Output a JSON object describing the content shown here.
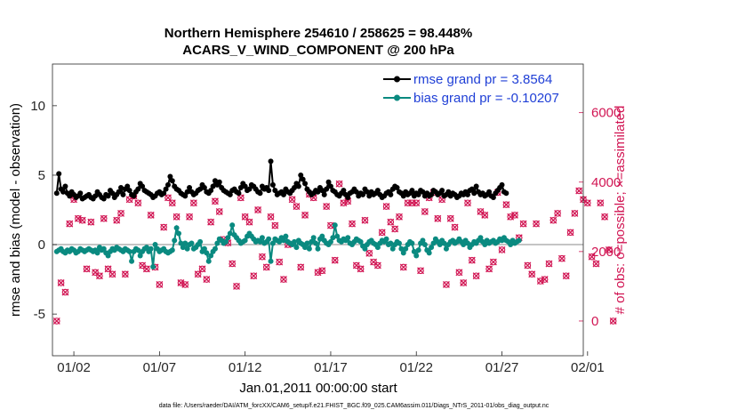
{
  "chart_data": {
    "type": "line",
    "title": "Northern Hemisphere 254610 / 258625 = 98.448%",
    "subtitle": "ACARS_V_WIND_COMPONENT @ 200 hPa",
    "xlabel": "Jan.01,2011 00:00:00 start",
    "ylabel_left": "rmse and bias (model - observation)",
    "ylabel_right": "# of obs: o=possible; ×=assimilated",
    "footnote": "data file: /Users/raeder/DAI/ATM_forcXX/CAM6_setup/f.e21.FHIST_BGC.f09_025.CAM6assim.011/Diags_NTrS_2011-01/obs_diag_output.nc",
    "x_ticks": [
      "01/02",
      "01/07",
      "01/12",
      "01/17",
      "01/22",
      "01/27",
      "02/01"
    ],
    "xlim": [
      0.75,
      31.75
    ],
    "ylim_left": [
      -8,
      13
    ],
    "ylim_right": [
      -1000,
      7400
    ],
    "y_ticks_left": [
      -5,
      0,
      5,
      10
    ],
    "y_ticks_right": [
      0,
      2000,
      4000,
      6000
    ],
    "colors": {
      "rmse": "#000000",
      "bias": "#0a8a80",
      "obs": "#d11553",
      "zero": "#b0b0b0",
      "legend_text": "#1f3fd6",
      "right_axis": "#d11553"
    },
    "legend": [
      {
        "name": "rmse grand pr = 3.8564",
        "key": "rmse"
      },
      {
        "name": "bias grand pr = -0.10207",
        "key": "bias"
      }
    ],
    "series": [
      {
        "name": "rmse",
        "x_start": 1.0,
        "x_step": 0.125,
        "values": [
          3.7,
          5.1,
          4.0,
          3.8,
          4.2,
          3.7,
          3.5,
          3.8,
          3.6,
          3.4,
          3.5,
          3.7,
          3.3,
          3.4,
          3.5,
          3.6,
          3.4,
          3.3,
          3.5,
          3.8,
          3.6,
          3.4,
          3.3,
          3.6,
          3.5,
          3.9,
          3.7,
          3.4,
          3.6,
          3.8,
          4.1,
          3.6,
          4.0,
          4.2,
          3.9,
          3.6,
          3.5,
          3.8,
          4.0,
          4.4,
          4.2,
          3.9,
          3.8,
          3.7,
          3.6,
          3.4,
          3.5,
          3.7,
          3.8,
          3.6,
          3.7,
          4.0,
          4.3,
          4.9,
          4.6,
          4.2,
          4.0,
          3.9,
          3.7,
          3.6,
          3.5,
          3.8,
          4.1,
          3.8,
          3.6,
          3.7,
          3.9,
          4.0,
          4.3,
          4.1,
          3.8,
          3.7,
          3.9,
          4.2,
          4.6,
          4.3,
          4.5,
          4.1,
          3.9,
          3.8,
          3.7,
          3.6,
          3.9,
          4.0,
          3.8,
          3.7,
          4.1,
          4.4,
          4.2,
          3.9,
          4.0,
          4.3,
          4.2,
          4.0,
          3.8,
          3.7,
          4.2,
          4.0,
          4.1,
          3.9,
          6.0,
          4.3,
          3.9,
          3.6,
          3.7,
          3.8,
          3.6,
          4.0,
          3.8,
          3.7,
          3.9,
          4.1,
          4.4,
          4.2,
          5.0,
          4.7,
          4.4,
          4.0,
          3.8,
          3.6,
          3.7,
          3.9,
          3.8,
          4.1,
          3.9,
          3.6,
          4.0,
          4.5,
          4.2,
          3.9,
          3.8,
          3.6,
          3.5,
          3.7,
          3.9,
          3.6,
          3.4,
          3.7,
          3.8,
          4.0,
          3.8,
          3.5,
          3.7,
          3.6,
          4.0,
          3.8,
          3.5,
          3.8,
          3.6,
          3.7,
          3.9,
          3.6,
          3.4,
          3.5,
          3.7,
          3.8,
          3.6,
          4.0,
          4.2,
          4.1,
          3.8,
          3.7,
          3.5,
          3.8,
          3.6,
          3.7,
          3.9,
          3.5,
          3.7,
          3.6,
          3.9,
          3.8,
          3.5,
          3.7,
          3.5,
          3.6,
          3.9,
          3.8,
          3.6,
          3.7,
          3.9,
          3.5,
          3.6,
          3.8,
          3.5,
          3.7,
          3.6,
          3.4,
          3.5,
          3.7,
          3.6,
          3.8,
          3.6,
          3.9,
          4.0,
          3.7,
          4.2,
          3.8,
          3.6,
          3.7,
          3.5,
          3.6,
          3.8,
          3.5,
          3.4,
          3.7,
          3.9,
          4.1,
          4.3,
          3.8,
          3.7
        ]
      },
      {
        "name": "bias",
        "x_start": 1.0,
        "x_step": 0.125,
        "values": [
          -0.5,
          -0.4,
          -0.3,
          -0.5,
          -0.6,
          -0.4,
          -0.5,
          -0.3,
          -0.4,
          -0.6,
          -0.5,
          -0.3,
          -0.4,
          -0.5,
          -0.4,
          -0.3,
          -0.4,
          -0.5,
          -0.4,
          -0.6,
          -0.2,
          -0.4,
          -0.3,
          -0.6,
          -0.8,
          -0.5,
          -0.3,
          -0.4,
          -0.2,
          -0.3,
          -0.4,
          -0.5,
          -0.3,
          -0.4,
          -0.5,
          -1.2,
          -0.5,
          -0.3,
          -0.4,
          -0.8,
          -0.5,
          -0.3,
          -0.2,
          -0.5,
          -0.3,
          -1.6,
          0.0,
          -0.3,
          -0.5,
          -0.4,
          -0.3,
          -0.5,
          -0.6,
          -0.5,
          -0.4,
          0.3,
          1.2,
          0.8,
          0.1,
          -0.2,
          0.1,
          -0.3,
          0.0,
          0.1,
          -0.3,
          -0.2,
          0.0,
          0.2,
          -0.5,
          -0.3,
          -0.6,
          -1.2,
          -0.8,
          -0.5,
          -0.3,
          0.1,
          0.4,
          0.3,
          0.1,
          0.2,
          0.5,
          0.8,
          1.4,
          0.7,
          0.5,
          0.3,
          0.1,
          0.2,
          0.3,
          0.6,
          0.8,
          0.6,
          0.4,
          0.2,
          0.3,
          0.2,
          0.5,
          0.1,
          0.2,
          0.4,
          -1.2,
          0.1,
          0.4,
          0.3,
          0.2,
          0.5,
          0.3,
          0.6,
          0.2,
          0.1,
          0.0,
          0.2,
          -0.2,
          0.3,
          0.1,
          0.0,
          -0.2,
          0.1,
          -0.3,
          0.2,
          0.5,
          0.1,
          -0.3,
          0.4,
          0.6,
          0.3,
          0.1,
          0.0,
          0.2,
          0.5,
          1.4,
          0.6,
          0.3,
          0.2,
          0.4,
          0.3,
          0.5,
          0.1,
          0.0,
          0.2,
          0.4,
          0.3,
          0.2,
          -0.1,
          -0.3,
          0.0,
          0.2,
          0.3,
          0.1,
          0.0,
          -0.2,
          0.1,
          0.3,
          0.2,
          0.4,
          0.0,
          0.1,
          -0.3,
          0.0,
          0.2,
          0.1,
          -0.3,
          -0.6,
          -0.3,
          0.0,
          0.2,
          0.1,
          -0.5,
          -0.8,
          -0.4,
          0.1,
          0.3,
          0.0,
          -0.4,
          -0.6,
          -0.2,
          0.1,
          0.4,
          0.2,
          0.0,
          0.3,
          0.1,
          -0.3,
          0.0,
          0.2,
          0.3,
          0.1,
          0.2,
          0.4,
          0.2,
          0.0,
          0.3,
          0.1,
          -0.2,
          0.0,
          0.2,
          0.1,
          0.3,
          0.5,
          0.2,
          0.0,
          0.3,
          0.1,
          0.2,
          0.3,
          0.1,
          0.2,
          0.4,
          0.3,
          0.5,
          0.3,
          0.2,
          0.0,
          0.3,
          0.1,
          0.2,
          0.3
        ]
      },
      {
        "name": "obs possible/assimilated",
        "axis": "right",
        "x_start": 1.0,
        "x_step": 0.25,
        "values": [
          0,
          1100,
          830,
          2800,
          3500,
          2950,
          2900,
          1500,
          2850,
          1400,
          1300,
          2950,
          1500,
          1350,
          2900,
          3100,
          1350,
          3500,
          3600,
          3400,
          1600,
          1500,
          3050,
          1550,
          1050,
          2700,
          3550,
          3400,
          3000,
          1100,
          1050,
          3000,
          3400,
          1350,
          1500,
          1200,
          2850,
          3450,
          3150,
          2350,
          2250,
          1650,
          1000,
          3550,
          3000,
          2850,
          1300,
          3200,
          1850,
          1550,
          3000,
          2750,
          1700,
          1200,
          2200,
          3500,
          3300,
          1550,
          3050,
          3650,
          3550,
          1400,
          1450,
          3300,
          2750,
          1750,
          3950,
          3400,
          3450,
          2800,
          1600,
          1500,
          2900,
          1950,
          1700,
          1600,
          2550,
          3300,
          2850,
          2650,
          3000,
          1550,
          3400,
          3400,
          3400,
          1450,
          3150,
          3550,
          3700,
          2950,
          3500,
          1050,
          2950,
          2700,
          1400,
          1100,
          3400,
          1750,
          1300,
          3150,
          3050,
          1500,
          1700,
          3700,
          2050,
          3350,
          3000,
          3050,
          2400,
          2800,
          1600,
          1350,
          2800,
          1150,
          1200,
          1650,
          2900,
          3100,
          1800,
          1300,
          2550,
          3100,
          3750,
          3500,
          3400,
          1850,
          1650,
          3400,
          3000,
          2050,
          0
        ]
      }
    ]
  }
}
